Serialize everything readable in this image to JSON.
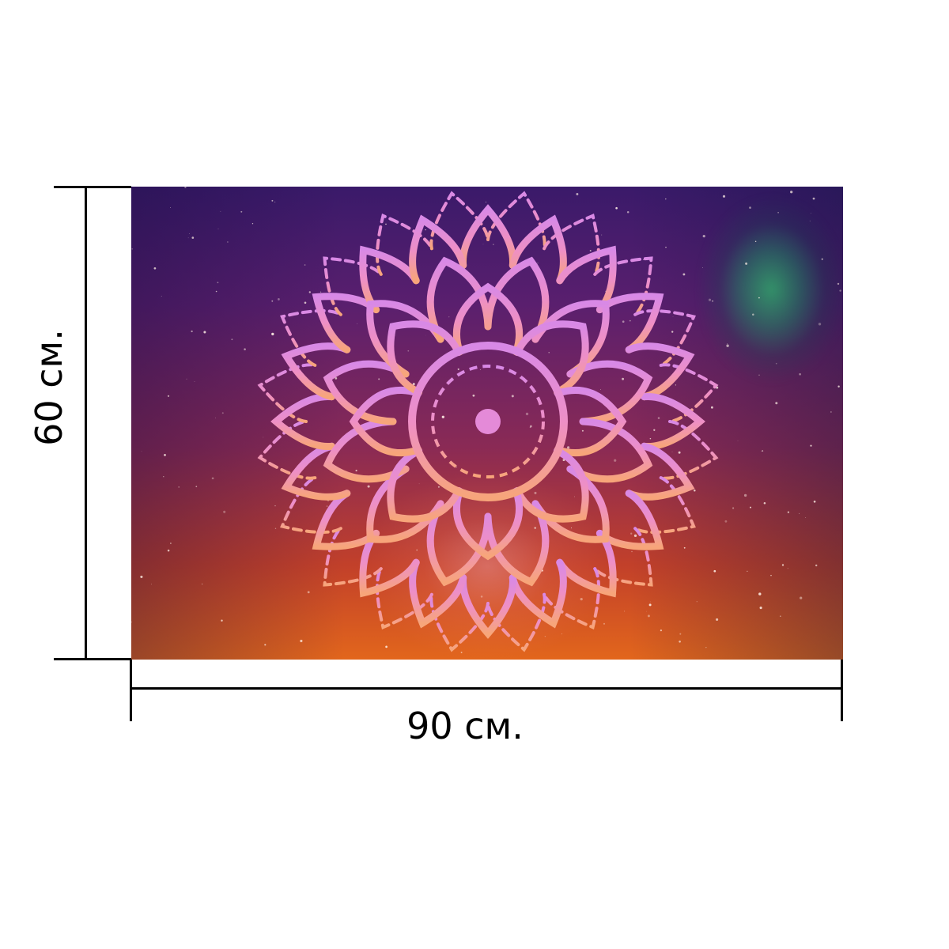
{
  "dimensions": {
    "width_label": "90 см.",
    "height_label": "60 см."
  },
  "image": {
    "subject_icon": "lotus-mandala-icon",
    "colors": {
      "top": "#3a1a6a",
      "middle": "#8a2a55",
      "bottom": "#e2661c",
      "nebula": "#3fd07a",
      "mandala_top": "#e08ae0",
      "mandala_bottom": "#f5a07a"
    }
  }
}
